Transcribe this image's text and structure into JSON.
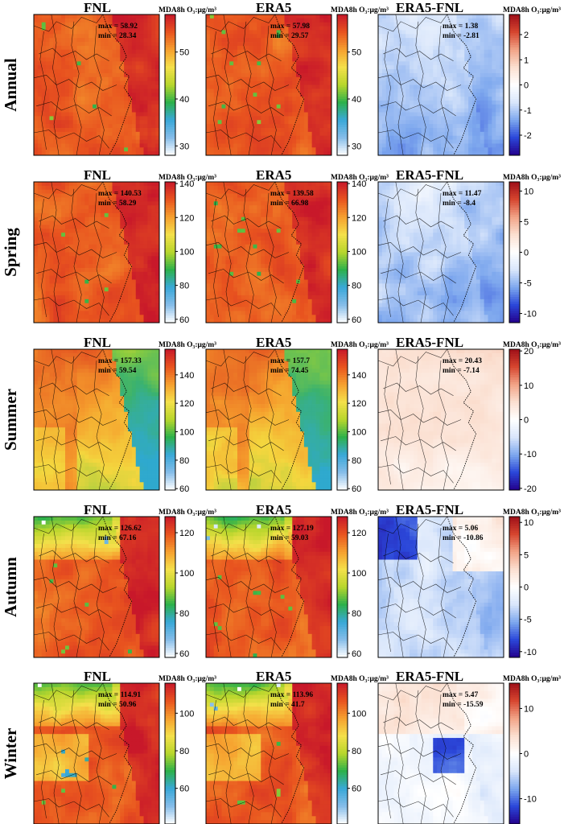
{
  "figure": {
    "columns": [
      "FNL",
      "ERA5",
      "ERA5-FNL"
    ],
    "unit_label": "MDA8h O₃:μg/m³",
    "rows": [
      {
        "label": "Annual",
        "panels": [
          {
            "kind": "abs",
            "max": "max = 58.92",
            "min": "min = 28.34"
          },
          {
            "kind": "abs",
            "max": "max = 57.98",
            "min": "min = 29.57"
          },
          {
            "kind": "diff",
            "max": "max = 1.38",
            "min": "min = -2.81"
          }
        ],
        "abs_scale": {
          "min": 28,
          "max": 58,
          "ticks": [
            "30",
            "40",
            "50"
          ],
          "tick_values": [
            30,
            40,
            50
          ]
        },
        "diff_scale": {
          "min": -2.8,
          "max": 2.8,
          "ticks": [
            "2",
            "1",
            "0",
            "-1",
            "-2"
          ],
          "tick_values": [
            2,
            1,
            0,
            -1,
            -2
          ]
        }
      },
      {
        "label": "Spring",
        "panels": [
          {
            "kind": "abs",
            "max": "max = 140.53",
            "min": "min = 58.29"
          },
          {
            "kind": "abs",
            "max": "max = 139.58",
            "min": "min = 66.98"
          },
          {
            "kind": "diff",
            "max": "max = 11.47",
            "min": "min = -8.4"
          }
        ],
        "abs_scale": {
          "min": 58,
          "max": 141,
          "ticks": [
            "140",
            "120",
            "100",
            "80",
            "60"
          ],
          "tick_values": [
            140,
            120,
            100,
            80,
            60
          ]
        },
        "diff_scale": {
          "min": -11.5,
          "max": 11.5,
          "ticks": [
            "10",
            "5",
            "0",
            "-5",
            "-10"
          ],
          "tick_values": [
            10,
            5,
            0,
            -5,
            -10
          ]
        }
      },
      {
        "label": "Summer",
        "panels": [
          {
            "kind": "abs",
            "max": "max = 157.33",
            "min": "min = 59.54"
          },
          {
            "kind": "abs",
            "max": "max = 157.7",
            "min": "min = 74.45"
          },
          {
            "kind": "diff",
            "max": "max = 20.43",
            "min": "min = -7.14"
          }
        ],
        "abs_scale": {
          "min": 59,
          "max": 158,
          "ticks": [
            "140",
            "120",
            "100",
            "80",
            "60"
          ],
          "tick_values": [
            140,
            120,
            100,
            80,
            60
          ]
        },
        "diff_scale": {
          "min": -20.5,
          "max": 20.5,
          "ticks": [
            "20",
            "10",
            "0",
            "-10",
            "-20"
          ],
          "tick_values": [
            20,
            10,
            0,
            -10,
            -20
          ]
        }
      },
      {
        "label": "Autumn",
        "panels": [
          {
            "kind": "abs",
            "max": "max = 126.62",
            "min": "min = 67.16"
          },
          {
            "kind": "abs",
            "max": "max = 127.19",
            "min": "min = 59.03"
          },
          {
            "kind": "diff",
            "max": "max = 5.06",
            "min": "min = -10.86"
          }
        ],
        "abs_scale": {
          "min": 58,
          "max": 128,
          "ticks": [
            "120",
            "100",
            "80",
            "60"
          ],
          "tick_values": [
            120,
            100,
            80,
            60
          ]
        },
        "diff_scale": {
          "min": -10.9,
          "max": 10.9,
          "ticks": [
            "10",
            "5",
            "0",
            "-5",
            "-10"
          ],
          "tick_values": [
            10,
            5,
            0,
            -5,
            -10
          ]
        }
      },
      {
        "label": "Winter",
        "panels": [
          {
            "kind": "abs",
            "max": "max = 114.91",
            "min": "min = 50.96"
          },
          {
            "kind": "abs",
            "max": "max = 113.96",
            "min": "min = 41.7"
          },
          {
            "kind": "diff",
            "max": "max = 5.47",
            "min": "min = -15.59"
          }
        ],
        "abs_scale": {
          "min": 41,
          "max": 116,
          "ticks": [
            "100",
            "80",
            "60"
          ],
          "tick_values": [
            100,
            80,
            60
          ]
        },
        "diff_scale": {
          "min": -15.6,
          "max": 15.6,
          "ticks": [
            "10",
            "0",
            "-10"
          ],
          "tick_values": [
            10,
            0,
            -10
          ]
        }
      }
    ],
    "colors": {
      "abs_colormap": [
        "#ffffff",
        "#86bde9",
        "#39a8d8",
        "#2db14b",
        "#b8d62c",
        "#f4e04a",
        "#f6a02f",
        "#e8531f",
        "#c8182a"
      ],
      "diff_colormap": [
        "#24008c",
        "#2b47d9",
        "#7ea8ee",
        "#d9e6fb",
        "#ffffff",
        "#fbdfd0",
        "#f2a386",
        "#d6452f",
        "#9e0f18"
      ],
      "summer_field": [
        "#2fa9ce",
        "#3bb26d",
        "#8ccc3e",
        "#f4d63e",
        "#f59b2c",
        "#e55a22",
        "#cc2b23"
      ],
      "map_border": "#000000"
    }
  }
}
